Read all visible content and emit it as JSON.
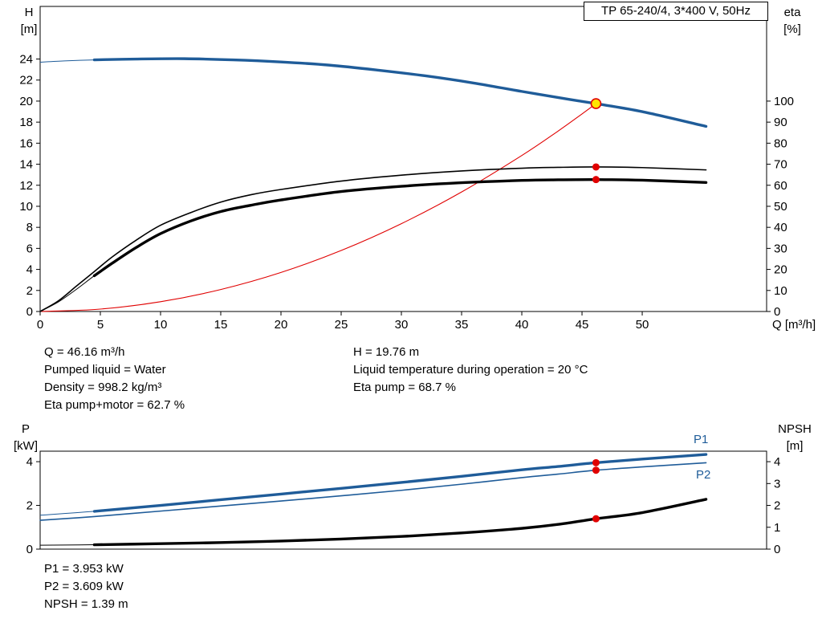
{
  "title_box": "TP 65-240/4, 3*400 V, 50Hz",
  "colors": {
    "blue": "#1f5c99",
    "red": "#e00000",
    "yellow": "#ffe500",
    "black": "#000000"
  },
  "axis_titles": {
    "top_left_1": "H",
    "top_left_2": "[m]",
    "top_right_1": "eta",
    "top_right_2": "[%]",
    "x_axis": "Q [m³/h]",
    "bottom_left_1": "P",
    "bottom_left_2": "[kW]",
    "bottom_right_1": "NPSH",
    "bottom_right_2": "[m]"
  },
  "series_labels": {
    "p1": "P1",
    "p2": "P2"
  },
  "info_top": {
    "col1": [
      "Q = 46.16 m³/h",
      "Pumped liquid = Water",
      "Density = 998.2 kg/m³",
      "Eta pump+motor = 62.7 %"
    ],
    "col2": [
      "H = 19.76 m",
      "Liquid temperature during operation = 20 °C",
      "Eta pump = 68.7 %"
    ]
  },
  "info_bottom": [
    "P1 = 3.953 kW",
    "P2 = 3.609 kW",
    "NPSH = 1.39 m"
  ],
  "chart_data": [
    {
      "type": "line",
      "name": "qh-eta-chart",
      "x": {
        "label": "Q [m³/h]",
        "min": 0,
        "max": 60.33,
        "ticks": [
          0,
          5,
          10,
          15,
          20,
          25,
          30,
          35,
          40,
          45,
          50
        ],
        "show_labels": true
      },
      "y_left": {
        "label": "H [m]",
        "min": 0,
        "max": 29,
        "ticks": [
          0,
          2,
          4,
          6,
          8,
          10,
          12,
          14,
          16,
          18,
          20,
          22,
          24
        ]
      },
      "y_right": {
        "label": "eta [%]",
        "min": 0,
        "max": 145,
        "ticks": [
          0,
          10,
          20,
          30,
          40,
          50,
          60,
          70,
          80,
          90,
          100
        ]
      },
      "series": [
        {
          "name": "system-curve",
          "color": "#e00000",
          "axis": "left",
          "width": 1.1,
          "points": [
            [
              0,
              0
            ],
            [
              5,
              0.23
            ],
            [
              10,
              0.93
            ],
            [
              15,
              2.09
            ],
            [
              20,
              3.71
            ],
            [
              25,
              5.8
            ],
            [
              30,
              8.35
            ],
            [
              35,
              11.36
            ],
            [
              40,
              14.83
            ],
            [
              43,
              17.14
            ],
            [
              45,
              18.78
            ],
            [
              46.16,
              19.76
            ]
          ]
        },
        {
          "name": "eta-pump",
          "color": "#000000",
          "axis": "right",
          "width": 1.6,
          "points": [
            [
              0,
              0
            ],
            [
              1.5,
              5
            ],
            [
              3,
              12
            ],
            [
              4.5,
              19
            ],
            [
              6,
              26
            ],
            [
              8,
              34
            ],
            [
              10,
              41
            ],
            [
              12.5,
              47
            ],
            [
              15,
              52
            ],
            [
              17.5,
              55.5
            ],
            [
              20,
              58
            ],
            [
              25,
              62
            ],
            [
              30,
              64.8
            ],
            [
              35,
              66.8
            ],
            [
              40,
              68.1
            ],
            [
              43,
              68.5
            ],
            [
              46.16,
              68.7
            ],
            [
              50,
              68.4
            ],
            [
              55.3,
              67.3
            ]
          ]
        },
        {
          "name": "eta-pump-motor",
          "color": "#000000",
          "axis": "right",
          "width": 3.4,
          "thin_width": 1.0,
          "thick_from": 4.5,
          "points": [
            [
              0,
              0
            ],
            [
              1.5,
              4.5
            ],
            [
              3,
              10.5
            ],
            [
              4.5,
              17
            ],
            [
              6,
              23
            ],
            [
              8,
              30.5
            ],
            [
              10,
              37
            ],
            [
              12.5,
              43
            ],
            [
              15,
              47.5
            ],
            [
              17.5,
              50.5
            ],
            [
              20,
              53
            ],
            [
              25,
              57
            ],
            [
              30,
              59.5
            ],
            [
              35,
              61.2
            ],
            [
              40,
              62.3
            ],
            [
              43,
              62.6
            ],
            [
              46.16,
              62.7
            ],
            [
              50,
              62.4
            ],
            [
              55.3,
              61.3
            ]
          ]
        },
        {
          "name": "head",
          "color": "#1f5c99",
          "axis": "left",
          "width": 3.4,
          "thin_width": 1.0,
          "thick_from": 4.5,
          "points": [
            [
              0,
              23.7
            ],
            [
              2,
              23.82
            ],
            [
              4.5,
              23.92
            ],
            [
              8,
              24.0
            ],
            [
              12,
              24.03
            ],
            [
              16,
              23.92
            ],
            [
              20,
              23.72
            ],
            [
              24,
              23.42
            ],
            [
              28,
              22.95
            ],
            [
              32,
              22.4
            ],
            [
              36,
              21.72
            ],
            [
              40,
              20.92
            ],
            [
              44,
              20.15
            ],
            [
              46.16,
              19.76
            ],
            [
              50,
              19.0
            ],
            [
              55.3,
              17.6
            ]
          ]
        }
      ],
      "markers": [
        {
          "name": "eta-pump-duty-dot",
          "x": 46.16,
          "y": 68.7,
          "axis": "right",
          "r": 4.5,
          "fill": "#e00000"
        },
        {
          "name": "eta-pump-motor-duty-dot",
          "x": 46.16,
          "y": 62.7,
          "axis": "right",
          "r": 4.5,
          "fill": "#e00000"
        },
        {
          "name": "duty-point",
          "x": 46.16,
          "y": 19.76,
          "axis": "left",
          "r": 6,
          "fill": "#ffe500",
          "stroke": "#e00000",
          "stroke_width": 1.6,
          "interactable": true
        }
      ]
    },
    {
      "type": "line",
      "name": "power-npsh-chart",
      "x": {
        "label": "",
        "min": 0,
        "max": 60.33,
        "ticks": [],
        "show_labels": false
      },
      "y_left": {
        "label": "P [kW]",
        "min": 0,
        "max": 4.48,
        "ticks": [
          0,
          2,
          4
        ]
      },
      "y_right": {
        "label": "NPSH [m]",
        "min": 0,
        "max": 4.48,
        "ticks": [
          0,
          1,
          2,
          3,
          4
        ]
      },
      "series": [
        {
          "name": "npsh",
          "color": "#000000",
          "axis": "right",
          "width": 3.4,
          "thin_width": 1.0,
          "thick_from": 4.5,
          "points": [
            [
              0,
              0.18
            ],
            [
              4.5,
              0.2
            ],
            [
              10,
              0.25
            ],
            [
              15,
              0.3
            ],
            [
              20,
              0.37
            ],
            [
              25,
              0.46
            ],
            [
              30,
              0.58
            ],
            [
              35,
              0.74
            ],
            [
              40,
              0.95
            ],
            [
              43,
              1.13
            ],
            [
              46.16,
              1.39
            ],
            [
              50,
              1.67
            ],
            [
              55.3,
              2.28
            ]
          ]
        },
        {
          "name": "p2",
          "color": "#1f5c99",
          "axis": "left",
          "width": 1.6,
          "points": [
            [
              0,
              1.32
            ],
            [
              4.5,
              1.49
            ],
            [
              10,
              1.74
            ],
            [
              15,
              1.97
            ],
            [
              20,
              2.2
            ],
            [
              25,
              2.44
            ],
            [
              30,
              2.69
            ],
            [
              35,
              2.97
            ],
            [
              40,
              3.27
            ],
            [
              43,
              3.43
            ],
            [
              46.16,
              3.609
            ],
            [
              50,
              3.76
            ],
            [
              55.3,
              3.95
            ]
          ]
        },
        {
          "name": "p1",
          "color": "#1f5c99",
          "axis": "left",
          "width": 3.4,
          "thin_width": 1.0,
          "thick_from": 4.5,
          "points": [
            [
              0,
              1.55
            ],
            [
              4.5,
              1.73
            ],
            [
              10,
              2.0
            ],
            [
              15,
              2.26
            ],
            [
              20,
              2.52
            ],
            [
              25,
              2.78
            ],
            [
              30,
              3.05
            ],
            [
              35,
              3.33
            ],
            [
              40,
              3.63
            ],
            [
              43,
              3.78
            ],
            [
              46.16,
              3.953
            ],
            [
              50,
              4.12
            ],
            [
              55.3,
              4.33
            ]
          ]
        }
      ],
      "markers": [
        {
          "name": "p1-duty-dot",
          "x": 46.16,
          "y": 3.953,
          "axis": "left",
          "r": 4.5,
          "fill": "#e00000"
        },
        {
          "name": "p2-duty-dot",
          "x": 46.16,
          "y": 3.609,
          "axis": "left",
          "r": 4.5,
          "fill": "#e00000"
        },
        {
          "name": "npsh-duty-dot",
          "x": 46.16,
          "y": 1.39,
          "axis": "right",
          "r": 4.5,
          "fill": "#e00000"
        }
      ]
    }
  ]
}
